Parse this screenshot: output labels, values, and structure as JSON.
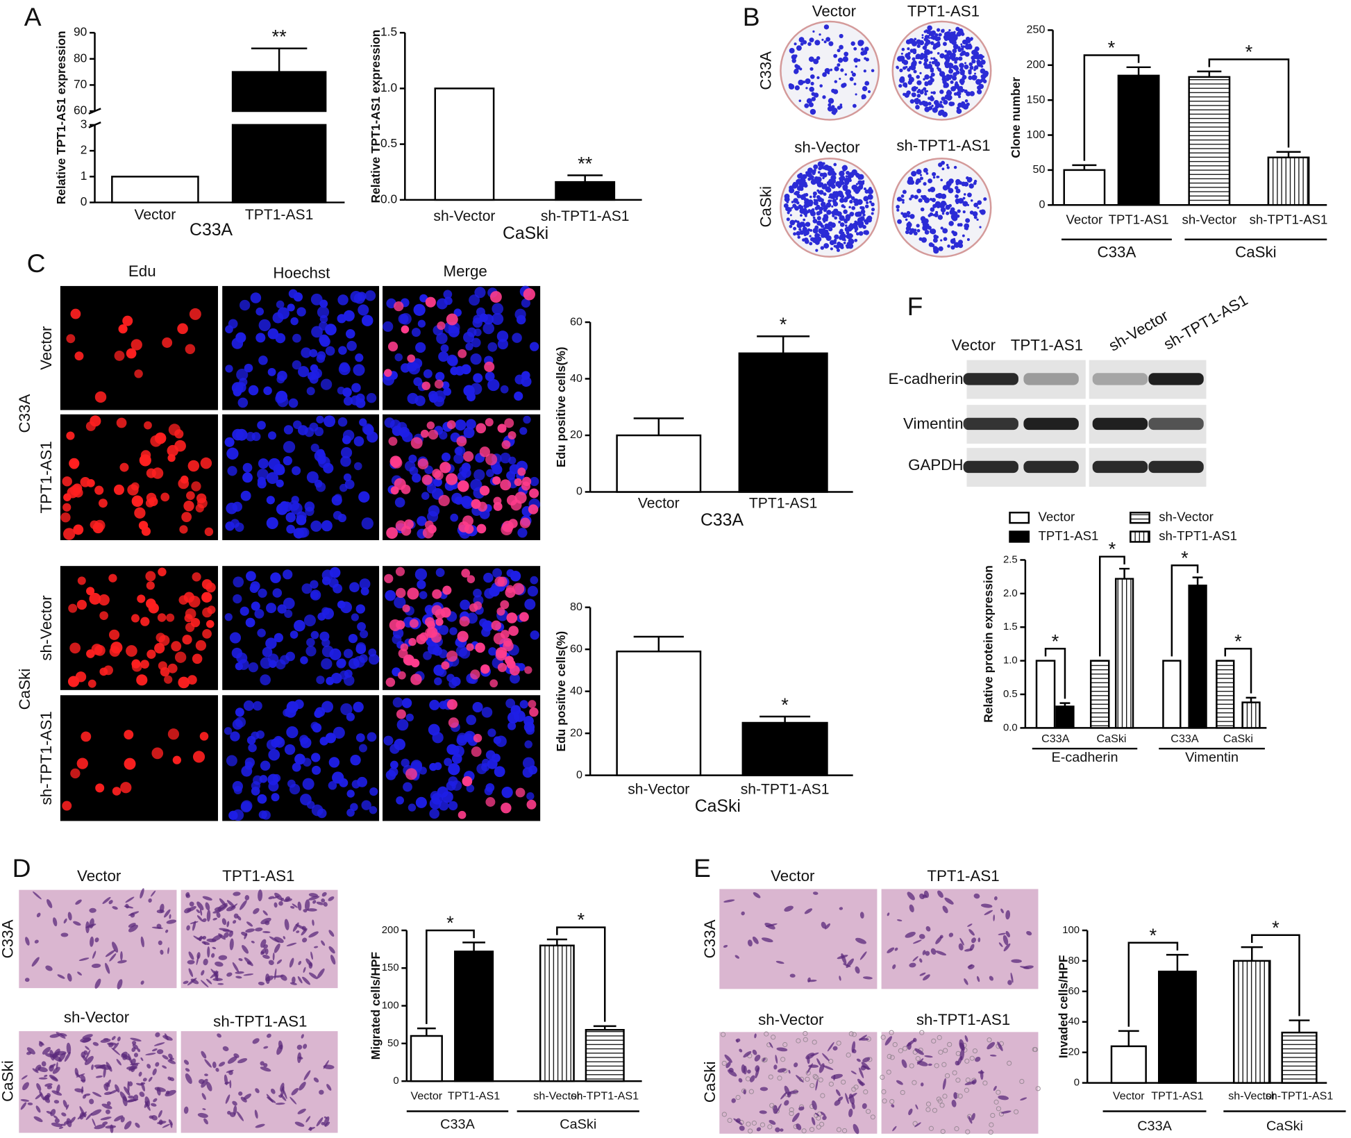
{
  "panel_labels": [
    "A",
    "B",
    "C",
    "D",
    "E",
    "F"
  ],
  "image_labels": {
    "B": [
      "Vector",
      "TPT1-AS1",
      "sh-Vector",
      "sh-TPT1-AS1",
      "C33A",
      "CaSki"
    ],
    "C": [
      "Edu",
      "Hoechst",
      "Merge",
      "Vector",
      "TPT1-AS1",
      "C33A",
      "sh-Vector",
      "sh-TPT1-AS1",
      "CaSki"
    ],
    "D": [
      "Vector",
      "TPT1-AS1",
      "sh-Vector",
      "sh-TPT1-AS1",
      "C33A",
      "CaSki"
    ],
    "E": [
      "Vector",
      "TPT1-AS1",
      "sh-Vector",
      "sh-TPT1-AS1",
      "C33A",
      "CaSki"
    ],
    "F": [
      "Vector",
      "TPT1-AS1",
      "sh-Vector",
      "sh-TPT1-AS1",
      "E-cadherin",
      "Vimentin",
      "GAPDH"
    ]
  },
  "chart_data": [
    {
      "type": "bar",
      "y_label": "Relative TPT1-AS1 expression",
      "categories": [
        "Vector",
        "TPT1-AS1"
      ],
      "group_labels": [
        "C33A"
      ],
      "values": [
        1,
        75
      ],
      "errors": [
        null,
        9
      ],
      "bar_fills": [
        "#ffffff",
        "#000000"
      ],
      "ylim": [
        0,
        90
      ],
      "ybreak": [
        3,
        60
      ],
      "yticks": [
        0,
        1,
        2,
        3,
        60,
        70,
        80,
        90
      ],
      "annotations": [
        "**"
      ]
    },
    {
      "type": "bar",
      "y_label": "Relative TPT1-AS1 expression",
      "categories": [
        "sh-Vector",
        "sh-TPT1-AS1"
      ],
      "group_labels": [
        "CaSki"
      ],
      "values": [
        1,
        0.16
      ],
      "errors": [
        null,
        0.06
      ],
      "bar_fills": [
        "#ffffff",
        "#000000"
      ],
      "ylim": [
        0,
        1.5
      ],
      "yticks": [
        {
          "value": 0,
          "label": "0.0"
        },
        0.5,
        {
          "value": 1,
          "label": "1.0"
        },
        1.5
      ],
      "annotations": [
        "**"
      ]
    },
    {
      "type": "bar",
      "y_label": "Clone number",
      "categories": [
        "Vector",
        "TPT1-AS1",
        "sh-Vector",
        "sh-TPT1-AS1"
      ],
      "group_labels": [
        "C33A",
        "CaSki"
      ],
      "values": [
        50,
        185,
        183,
        68
      ],
      "errors": [
        7,
        12,
        8,
        8
      ],
      "bar_fills": [
        "#ffffff",
        "#000000",
        "horizontal-stripes",
        "vertical-stripes"
      ],
      "ylim": [
        0,
        250
      ],
      "yticks": [
        0,
        50,
        100,
        150,
        200,
        250
      ],
      "annotations": [
        "*",
        "*"
      ]
    },
    {
      "type": "bar",
      "y_label": "Edu positive cells(%)",
      "categories": [
        "Vector",
        "TPT1-AS1"
      ],
      "group_labels": [
        "C33A"
      ],
      "values": [
        20,
        49
      ],
      "errors": [
        6,
        6
      ],
      "bar_fills": [
        "#ffffff",
        "#000000"
      ],
      "ylim": [
        0,
        60
      ],
      "yticks": [
        0,
        20,
        40,
        60
      ],
      "annotations": [
        "*"
      ]
    },
    {
      "type": "bar",
      "y_label": "Edu positive cells(%)",
      "categories": [
        "sh-Vector",
        "sh-TPT1-AS1"
      ],
      "group_labels": [
        "CaSki"
      ],
      "values": [
        59,
        25
      ],
      "errors": [
        7,
        3
      ],
      "bar_fills": [
        "#ffffff",
        "#000000"
      ],
      "ylim": [
        0,
        80
      ],
      "yticks": [
        0,
        20,
        40,
        60,
        80
      ],
      "annotations": [
        "*"
      ]
    },
    {
      "type": "bar",
      "y_label": "Migrated cells/HPF",
      "categories": [
        "Vector",
        "TPT1-AS1",
        "sh-Vector",
        "sh-TPT1-AS1"
      ],
      "group_labels": [
        "C33A",
        "CaSki"
      ],
      "values": [
        60,
        172,
        180,
        68
      ],
      "errors": [
        10,
        12,
        8,
        5
      ],
      "bar_fills": [
        "#ffffff",
        "#000000",
        "vertical-stripes",
        "horizontal-stripes"
      ],
      "ylim": [
        0,
        200
      ],
      "yticks": [
        0,
        50,
        100,
        150,
        200
      ],
      "annotations": [
        "*",
        "*"
      ]
    },
    {
      "type": "bar",
      "y_label": "Invaded cells/HPF",
      "categories": [
        "Vector",
        "TPT1-AS1",
        "sh-Vector",
        "sh-TPT1-AS1"
      ],
      "group_labels": [
        "C33A",
        "CaSki"
      ],
      "values": [
        24,
        73,
        80,
        33
      ],
      "errors": [
        10,
        11,
        9,
        8
      ],
      "bar_fills": [
        "#ffffff",
        "#000000",
        "vertical-stripes",
        "horizontal-stripes"
      ],
      "ylim": [
        0,
        100
      ],
      "yticks": [
        0,
        20,
        40,
        60,
        80,
        100
      ],
      "annotations": [
        "*",
        "*"
      ]
    },
    {
      "type": "bar",
      "y_label": "Relative protein expression",
      "categories": [
        "C33A",
        "CaSki",
        "C33A",
        "CaSki"
      ],
      "group_labels": [
        "E-cadherin",
        "Vimentin"
      ],
      "series": [
        {
          "name": "Vector",
          "fill": "#ffffff",
          "values": [
            1,
            null,
            1,
            null
          ],
          "errors": [
            null,
            null,
            null,
            null
          ]
        },
        {
          "name": "TPT1-AS1",
          "fill": "#000000",
          "values": [
            0.32,
            null,
            2.12,
            null
          ],
          "errors": [
            0.05,
            null,
            0.12,
            null
          ]
        },
        {
          "name": "sh-Vector",
          "fill": "horizontal-stripes",
          "values": [
            null,
            1,
            null,
            1
          ],
          "errors": [
            null,
            null,
            null,
            null
          ]
        },
        {
          "name": "sh-TPT1-AS1",
          "fill": "vertical-stripes",
          "values": [
            null,
            2.22,
            null,
            0.38
          ],
          "errors": [
            null,
            0.15,
            null,
            0.07
          ]
        }
      ],
      "ylim": [
        0,
        2.5
      ],
      "yticks": [
        {
          "value": 0,
          "label": "0.0"
        },
        0.5,
        {
          "value": 1,
          "label": "1.0"
        },
        1.5,
        {
          "value": 2,
          "label": "2.0"
        },
        2.5
      ],
      "annotations": [
        "*",
        "*",
        "*",
        "*"
      ]
    }
  ]
}
